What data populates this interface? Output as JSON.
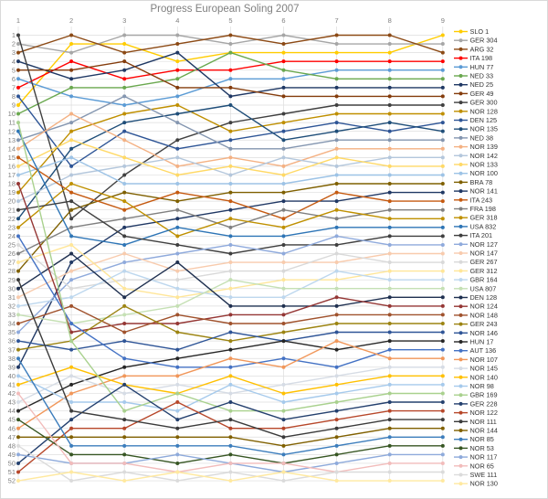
{
  "title": "Progress European Soling 2007",
  "colors": {
    "background": "#ffffff",
    "frame_border": "#d9d9d9",
    "gridline": "#dddddd",
    "axis_text": "#7f7f7f",
    "title_text": "#7f7f7f",
    "legend_text": "#333333"
  },
  "chart_data": {
    "type": "line",
    "subtype": "bump-chart (ranking per race)",
    "title": "Progress European Soling 2007",
    "xlabel": "",
    "ylabel": "",
    "x": [
      1,
      2,
      3,
      4,
      5,
      6,
      7,
      8,
      9
    ],
    "x_axis_position": "top",
    "y_axis_inverted": true,
    "position_range": [
      1,
      52
    ],
    "grid": true,
    "legend_position": "right",
    "series": [
      {
        "name": "SLO 1",
        "color": "#FFCC00",
        "positions": [
          9,
          2,
          2,
          4,
          3,
          3,
          3,
          3,
          1
        ]
      },
      {
        "name": "GER 304",
        "color": "#A6A6A6",
        "positions": [
          2,
          3,
          1,
          1,
          2,
          1,
          2,
          2,
          2
        ]
      },
      {
        "name": "ARG 32",
        "color": "#8C4A15",
        "positions": [
          3,
          1,
          3,
          2,
          1,
          2,
          1,
          1,
          3
        ]
      },
      {
        "name": "ITA 198",
        "color": "#FF0000",
        "positions": [
          7,
          4,
          6,
          5,
          5,
          4,
          4,
          4,
          4
        ]
      },
      {
        "name": "HUN 77",
        "color": "#5B9BD5",
        "positions": [
          6,
          8,
          9,
          8,
          6,
          6,
          5,
          5,
          5
        ]
      },
      {
        "name": "NED 33",
        "color": "#6AA84F",
        "positions": [
          10,
          7,
          7,
          6,
          3,
          5,
          6,
          6,
          6
        ]
      },
      {
        "name": "NED 25",
        "color": "#1F3864",
        "positions": [
          4,
          6,
          5,
          3,
          8,
          7,
          7,
          7,
          7
        ]
      },
      {
        "name": "GER 49",
        "color": "#843C0C",
        "positions": [
          5,
          5,
          4,
          7,
          7,
          8,
          8,
          8,
          8
        ]
      },
      {
        "name": "GER 300",
        "color": "#404040",
        "positions": [
          1,
          22,
          17,
          13,
          11,
          10,
          9,
          9,
          9
        ]
      },
      {
        "name": "NOR 128",
        "color": "#BF8F00",
        "positions": [
          19,
          12,
          10,
          9,
          12,
          11,
          10,
          10,
          10
        ]
      },
      {
        "name": "DEN 125",
        "color": "#2E5596",
        "positions": [
          8,
          16,
          12,
          14,
          13,
          12,
          11,
          12,
          11
        ]
      },
      {
        "name": "NOR 135",
        "color": "#1F4E79",
        "positions": [
          22,
          14,
          11,
          10,
          9,
          13,
          12,
          11,
          12
        ]
      },
      {
        "name": "NED 38",
        "color": "#8496B0",
        "positions": [
          13,
          11,
          8,
          11,
          14,
          14,
          13,
          13,
          13
        ]
      },
      {
        "name": "NOR 139",
        "color": "#F4B183",
        "positions": [
          14,
          10,
          13,
          16,
          15,
          16,
          14,
          14,
          14
        ]
      },
      {
        "name": "NOR 142",
        "color": "#B4C7DC",
        "positions": [
          20,
          17,
          16,
          15,
          17,
          15,
          16,
          15,
          15
        ]
      },
      {
        "name": "NOR 133",
        "color": "#FFD966",
        "positions": [
          16,
          13,
          15,
          17,
          16,
          17,
          15,
          16,
          16
        ]
      },
      {
        "name": "NOR 100",
        "color": "#9DC3E6",
        "positions": [
          17,
          15,
          18,
          18,
          18,
          18,
          17,
          17,
          17
        ]
      },
      {
        "name": "BRA 78",
        "color": "#7F6000",
        "positions": [
          28,
          21,
          19,
          20,
          19,
          19,
          18,
          18,
          18
        ]
      },
      {
        "name": "NOR 141",
        "color": "#203864",
        "positions": [
          39,
          27,
          23,
          22,
          21,
          20,
          20,
          19,
          19
        ]
      },
      {
        "name": "ITA 243",
        "color": "#C55A11",
        "positions": [
          15,
          19,
          21,
          19,
          20,
          22,
          19,
          20,
          20
        ]
      },
      {
        "name": "FRA 198",
        "color": "#808080",
        "positions": [
          26,
          23,
          22,
          21,
          23,
          21,
          22,
          21,
          21
        ]
      },
      {
        "name": "GER 318",
        "color": "#BF9000",
        "positions": [
          23,
          18,
          20,
          24,
          22,
          23,
          21,
          22,
          22
        ]
      },
      {
        "name": "USA 832",
        "color": "#2E75B6",
        "positions": [
          12,
          24,
          25,
          23,
          24,
          24,
          23,
          23,
          23
        ]
      },
      {
        "name": "ITA 201",
        "color": "#3F3F3F",
        "positions": [
          21,
          20,
          24,
          25,
          26,
          25,
          25,
          24,
          24
        ]
      },
      {
        "name": "NOR 127",
        "color": "#8FAADC",
        "positions": [
          35,
          29,
          27,
          26,
          25,
          26,
          24,
          25,
          25
        ]
      },
      {
        "name": "NOR 147",
        "color": "#F8CBAD",
        "positions": [
          31,
          28,
          26,
          28,
          27,
          27,
          27,
          26,
          26
        ]
      },
      {
        "name": "GER 267",
        "color": "#D9D9D9",
        "positions": [
          25,
          30,
          29,
          29,
          28,
          28,
          26,
          27,
          27
        ]
      },
      {
        "name": "GER 312",
        "color": "#FFE699",
        "positions": [
          27,
          25,
          30,
          31,
          30,
          29,
          29,
          28,
          28
        ]
      },
      {
        "name": "GBR 164",
        "color": "#BDD7EE",
        "positions": [
          32,
          31,
          28,
          30,
          31,
          31,
          28,
          29,
          29
        ]
      },
      {
        "name": "USA 807",
        "color": "#C5E0B4",
        "positions": [
          33,
          34,
          33,
          32,
          29,
          30,
          30,
          30,
          30
        ]
      },
      {
        "name": "DEN 128",
        "color": "#1F3050",
        "positions": [
          30,
          26,
          31,
          27,
          32,
          32,
          32,
          31,
          31
        ]
      },
      {
        "name": "NOR 124",
        "color": "#953735",
        "positions": [
          18,
          35,
          34,
          34,
          33,
          33,
          31,
          32,
          32
        ]
      },
      {
        "name": "NOR 148",
        "color": "#A0522D",
        "positions": [
          34,
          32,
          35,
          33,
          34,
          34,
          33,
          33,
          33
        ]
      },
      {
        "name": "GER 243",
        "color": "#9C8412",
        "positions": [
          37,
          36,
          32,
          35,
          36,
          35,
          34,
          34,
          34
        ]
      },
      {
        "name": "NOR 146",
        "color": "#2F5597",
        "positions": [
          36,
          37,
          36,
          37,
          35,
          36,
          35,
          35,
          35
        ]
      },
      {
        "name": "HUN 17",
        "color": "#262626",
        "positions": [
          44,
          41,
          39,
          38,
          37,
          36,
          37,
          36,
          36
        ]
      },
      {
        "name": "AUT 136",
        "color": "#4472C4",
        "positions": [
          24,
          34,
          38,
          39,
          39,
          38,
          39,
          37,
          37
        ]
      },
      {
        "name": "NOR 107",
        "color": "#F1975A",
        "positions": [
          46,
          42,
          40,
          40,
          38,
          39,
          36,
          38,
          38
        ]
      },
      {
        "name": "NOR 145",
        "color": "#D6DCE5",
        "positions": [
          43,
          40,
          42,
          41,
          42,
          41,
          40,
          39,
          39
        ]
      },
      {
        "name": "NOR 140",
        "color": "#FFC000",
        "positions": [
          41,
          39,
          41,
          42,
          40,
          42,
          41,
          40,
          40
        ]
      },
      {
        "name": "NOR 98",
        "color": "#A6CAEC",
        "positions": [
          40,
          43,
          43,
          44,
          41,
          43,
          42,
          41,
          41
        ]
      },
      {
        "name": "GBR 169",
        "color": "#A9D18E",
        "positions": [
          11,
          36,
          44,
          42,
          44,
          44,
          43,
          42,
          42
        ]
      },
      {
        "name": "GER 228",
        "color": "#24406E",
        "positions": [
          50,
          45,
          41,
          45,
          43,
          45,
          44,
          43,
          43
        ]
      },
      {
        "name": "NOR 122",
        "color": "#B7472A",
        "positions": [
          51,
          46,
          46,
          43,
          46,
          46,
          45,
          44,
          44
        ]
      },
      {
        "name": "NOR 111",
        "color": "#3B3B3B",
        "positions": [
          29,
          44,
          45,
          46,
          45,
          47,
          46,
          45,
          45
        ]
      },
      {
        "name": "NOR 144",
        "color": "#806000",
        "positions": [
          47,
          47,
          47,
          47,
          47,
          48,
          47,
          46,
          46
        ]
      },
      {
        "name": "NOR 85",
        "color": "#3C7DBC",
        "positions": [
          38,
          48,
          48,
          48,
          48,
          49,
          48,
          47,
          47
        ]
      },
      {
        "name": "NOR 53",
        "color": "#375623",
        "positions": [
          45,
          49,
          49,
          50,
          49,
          50,
          49,
          48,
          48
        ]
      },
      {
        "name": "NOR 117",
        "color": "#8EAADB",
        "positions": [
          49,
          50,
          50,
          49,
          50,
          51,
          50,
          49,
          49
        ]
      },
      {
        "name": "NOR 65",
        "color": "#F2BCBB",
        "positions": [
          42,
          50,
          50,
          51,
          50,
          50,
          51,
          50,
          50
        ]
      },
      {
        "name": "SWE 111",
        "color": "#DBDBDB",
        "positions": [
          48,
          52,
          51,
          52,
          51,
          52,
          51,
          51,
          51
        ]
      },
      {
        "name": "NOR 130",
        "color": "#FFE9A0",
        "positions": [
          52,
          51,
          52,
          51,
          52,
          51,
          52,
          52,
          52
        ]
      }
    ]
  }
}
